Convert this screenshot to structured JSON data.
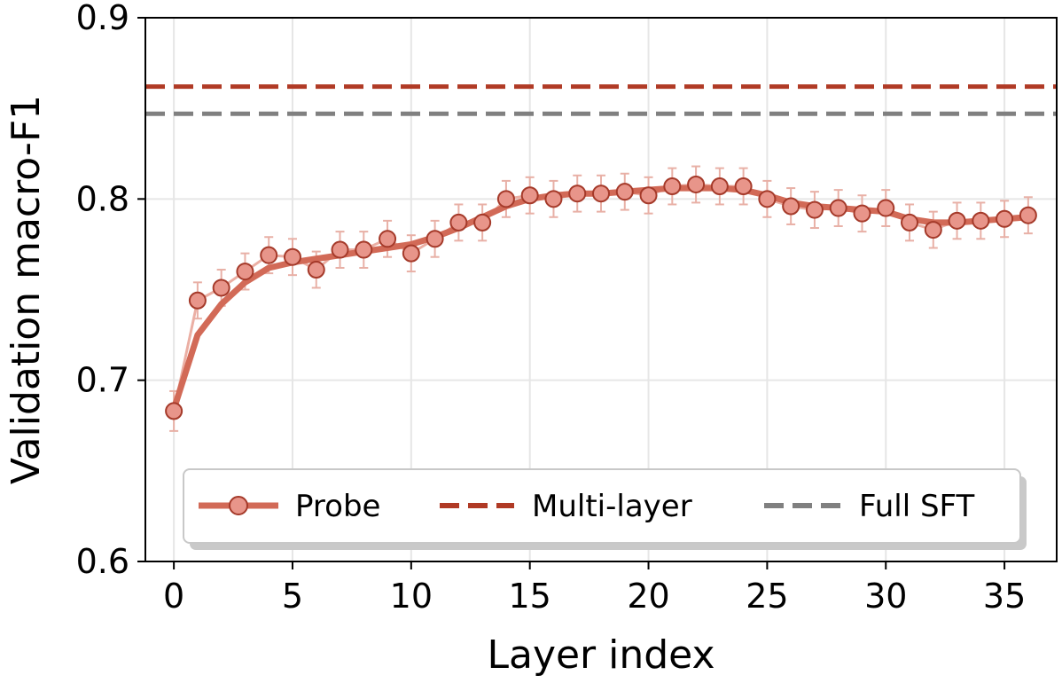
{
  "chart_data": {
    "type": "line",
    "xlabel": "Layer index",
    "ylabel": "Validation macro-F1",
    "xlim": [
      -1.2,
      37.2
    ],
    "ylim": [
      0.6,
      0.9
    ],
    "xticks": [
      0,
      5,
      10,
      15,
      20,
      25,
      30,
      35
    ],
    "yticks": [
      0.6,
      0.7,
      0.8,
      0.9
    ],
    "xtick_labels": [
      "0",
      "5",
      "10",
      "15",
      "20",
      "25",
      "30",
      "35"
    ],
    "ytick_labels": [
      "0.6",
      "0.7",
      "0.8",
      "0.9"
    ],
    "grid": true,
    "legend_position": "bottom",
    "series": [
      {
        "name": "Probe",
        "color": "#D26A57",
        "marker_fill": "#E8958A",
        "marker_edge": "#A53A2A",
        "x": [
          0,
          1,
          2,
          3,
          4,
          5,
          6,
          7,
          8,
          9,
          10,
          11,
          12,
          13,
          14,
          15,
          16,
          17,
          18,
          19,
          20,
          21,
          22,
          23,
          24,
          25,
          26,
          27,
          28,
          29,
          30,
          31,
          32,
          33,
          34,
          35,
          36
        ],
        "values": [
          0.683,
          0.744,
          0.751,
          0.76,
          0.769,
          0.768,
          0.761,
          0.772,
          0.772,
          0.778,
          0.77,
          0.778,
          0.787,
          0.787,
          0.8,
          0.802,
          0.8,
          0.803,
          0.803,
          0.804,
          0.802,
          0.807,
          0.808,
          0.807,
          0.807,
          0.8,
          0.796,
          0.794,
          0.795,
          0.792,
          0.795,
          0.787,
          0.783,
          0.788,
          0.788,
          0.789,
          0.791
        ],
        "error": [
          0.011,
          0.01,
          0.01,
          0.01,
          0.01,
          0.01,
          0.01,
          0.01,
          0.01,
          0.01,
          0.01,
          0.01,
          0.01,
          0.01,
          0.01,
          0.01,
          0.01,
          0.01,
          0.01,
          0.01,
          0.01,
          0.01,
          0.01,
          0.01,
          0.01,
          0.01,
          0.01,
          0.01,
          0.01,
          0.01,
          0.01,
          0.01,
          0.01,
          0.01,
          0.01,
          0.01,
          0.01
        ],
        "smoothed": [
          0.684,
          0.725,
          0.742,
          0.754,
          0.762,
          0.765,
          0.767,
          0.769,
          0.771,
          0.773,
          0.775,
          0.779,
          0.784,
          0.79,
          0.796,
          0.8,
          0.802,
          0.803,
          0.803,
          0.804,
          0.805,
          0.806,
          0.806,
          0.806,
          0.805,
          0.802,
          0.798,
          0.796,
          0.795,
          0.794,
          0.793,
          0.789,
          0.787,
          0.787,
          0.788,
          0.789,
          0.79
        ]
      },
      {
        "name": "Multi-layer",
        "type": "hline",
        "color": "#B03A25",
        "value": 0.862
      },
      {
        "name": "Full SFT",
        "type": "hline",
        "color": "#808080",
        "value": 0.847
      }
    ]
  }
}
